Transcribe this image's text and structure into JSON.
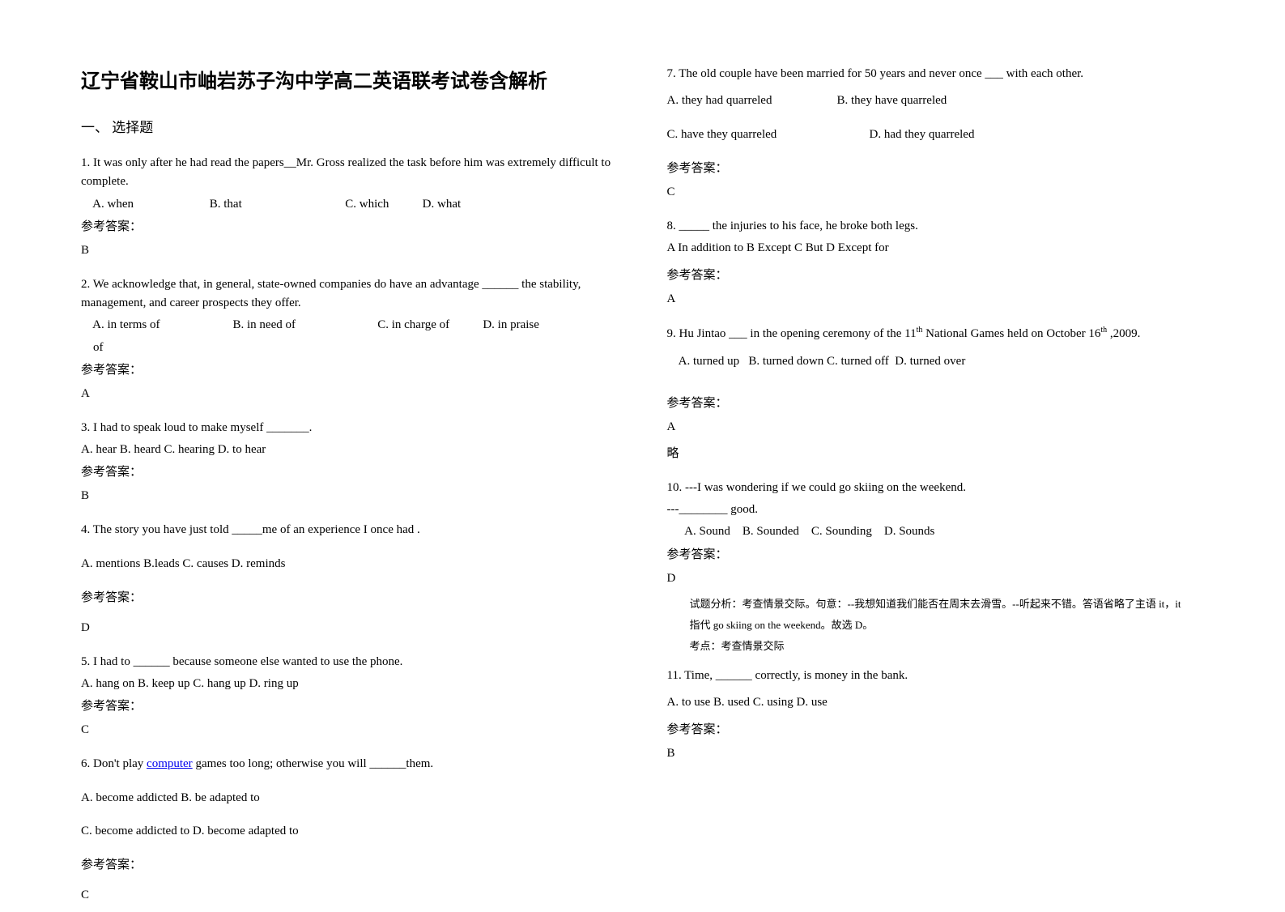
{
  "title": "辽宁省鞍山市岫岩苏子沟中学高二英语联考试卷含解析",
  "section1": "一、 选择题",
  "ref_label": "参考答案：",
  "q1": {
    "text": "1. It was only after he had read the papers__Mr. Gross realized the task before him was extremely difficult to complete.",
    "opts": "    A. when                         B. that                                  C. which           D. what",
    "ans": "B"
  },
  "q2": {
    "text": "2. We acknowledge that, in general, state-owned companies do have an advantage ______ the stability, management, and career prospects they offer.",
    "opts1": "    A. in terms of                        B. in need of                           C. in charge of           D. in praise",
    "opts2": "    of",
    "ans": "A"
  },
  "q3": {
    "text": "3. I had to speak loud to make myself _______.",
    "opts": "A. hear     B. heard     C. hearing     D. to hear",
    "ans": "B"
  },
  "q4": {
    "text": "4. The story you have just told _____me of an experience I once had .",
    "opts": "A. mentions      B.leads       C. causes      D. reminds",
    "ans": "D"
  },
  "q5": {
    "text": "5. I had to ______ because someone else wanted to use the phone.",
    "opts": "A. hang on                   B. keep up   C. hang up  D. ring up",
    "ans": "C"
  },
  "q6": {
    "text_pre": "6. Don't play ",
    "link": "computer",
    "text_post": " games too long; otherwise you will ______them.",
    "opt_a": "A. become addicted   B. be adapted to",
    "opt_c": "C. become addicted to  D. become adapted to",
    "ans": "C"
  },
  "q7": {
    "text": "7. The old couple have been married for 50 years and never once ___ with each other.",
    "opt_a": "A. they had quarreled",
    "opt_b": "B. they have quarreled",
    "opt_c": "C. have they quarreled",
    "opt_d": "D. had they quarreled",
    "ans": "C"
  },
  "q8": {
    "text": "8. _____ the injuries to his face, he broke both legs.",
    "opts": "A In addition to   B Except    C But     D Except for",
    "ans": "A"
  },
  "q9": {
    "text_pre": "9. Hu Jintao ___ in the opening ceremony of the 11",
    "sup1": "th",
    "text_mid": " National Games   held on October 16",
    "sup2": "th",
    "text_post": " ,2009.",
    "opts": "    A. turned up   B. turned down C. turned off  D. turned over",
    "ans": "A",
    "note": "略"
  },
  "q10": {
    "line1": "10. ---I was wondering if we could go skiing on the weekend.",
    "line2": "---________ good.",
    "opts": "      A. Sound    B. Sounded    C. Sounding    D. Sounds",
    "ans": "D",
    "exp1": "试题分析：考查情景交际。句意：--我想知道我们能否在周末去滑雪。--听起来不错。答语省略了主语 it，it",
    "exp2": "指代 go skiing on the weekend。故选 D。",
    "exp3": "考点：考查情景交际"
  },
  "q11": {
    "text": "11. Time, ______ correctly, is money in the bank.",
    "opts": "A. to use        B. used        C. using        D. use",
    "ans": "B"
  }
}
